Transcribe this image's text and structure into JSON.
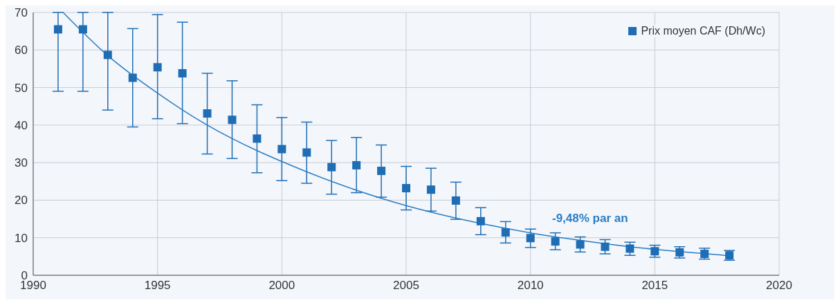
{
  "chart_data": {
    "type": "scatter",
    "grid": true,
    "legend": "top right",
    "xlim": [
      1990,
      2020
    ],
    "xticks": [
      1990,
      1995,
      2000,
      2005,
      2010,
      2015,
      2020
    ],
    "ylim": [
      0,
      70
    ],
    "yticks": [
      0,
      10,
      20,
      30,
      40,
      50,
      60,
      70
    ],
    "series": [
      {
        "name": "Prix moyen CAF (Dh/Wc)",
        "marker": "square",
        "color": "#1f6db5",
        "x": [
          1991,
          1992,
          1993,
          1994,
          1995,
          1996,
          1997,
          1998,
          1999,
          2000,
          2001,
          2002,
          2003,
          2004,
          2005,
          2006,
          2007,
          2008,
          2009,
          2010,
          2011,
          2012,
          2013,
          2014,
          2015,
          2016,
          2017,
          2018
        ],
        "values": [
          65.5,
          65.5,
          58.7,
          52.6,
          55.4,
          53.8,
          43.1,
          41.4,
          36.4,
          33.6,
          32.7,
          28.8,
          29.3,
          27.8,
          23.2,
          22.8,
          19.9,
          14.4,
          11.4,
          9.9,
          9.0,
          8.2,
          7.6,
          7.1,
          6.4,
          6.1,
          5.7,
          5.3
        ],
        "errors": [
          [
            49,
            70
          ],
          [
            49,
            70
          ],
          [
            44,
            70
          ],
          [
            39.5,
            65.7
          ],
          [
            41.7,
            69.4
          ],
          [
            40.4,
            67.4
          ],
          [
            32.3,
            53.8
          ],
          [
            31.1,
            51.8
          ],
          [
            27.3,
            45.4
          ],
          [
            25.2,
            42
          ],
          [
            24.5,
            40.8
          ],
          [
            21.6,
            35.9
          ],
          [
            22,
            36.7
          ],
          [
            20.8,
            34.7
          ],
          [
            17.4,
            29
          ],
          [
            17.1,
            28.5
          ],
          [
            14.9,
            24.8
          ],
          [
            10.8,
            18
          ],
          [
            8.6,
            14.3
          ],
          [
            7.4,
            12.3
          ],
          [
            6.8,
            11.3
          ],
          [
            6.2,
            10.2
          ],
          [
            5.7,
            9.5
          ],
          [
            5.3,
            8.8
          ],
          [
            4.8,
            8.0
          ],
          [
            4.6,
            7.6
          ],
          [
            4.3,
            7.2
          ],
          [
            4.0,
            6.6
          ]
        ]
      },
      {
        "type": "line",
        "color": "#2a7dc4",
        "x": [
          1991.2,
          1993,
          1995,
          1997,
          1999,
          2000,
          2002,
          2004,
          2006,
          2008,
          2010,
          2012,
          2014,
          2016,
          2018
        ],
        "values": [
          70,
          58.5,
          48.5,
          40,
          33.2,
          30.3,
          25,
          20.5,
          16.8,
          13.8,
          11.3,
          9.3,
          7.6,
          6.3,
          5.2
        ]
      }
    ],
    "annotations": [
      "-9,48% par an"
    ]
  }
}
